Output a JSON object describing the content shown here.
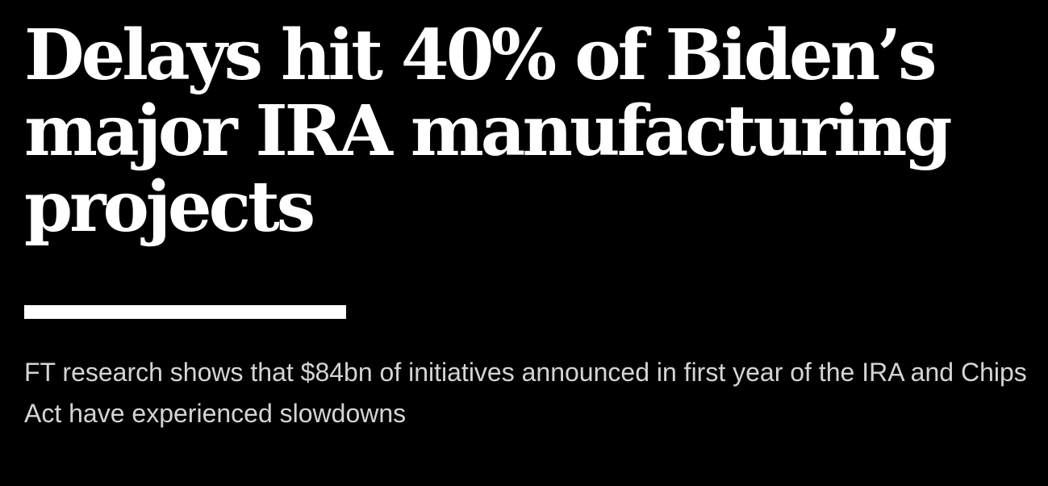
{
  "headline": "Delays hit 40% of Biden’s major IRA manufacturing projects",
  "standfirst": "FT research shows that $84bn of initiatives announced in first year of the IRA and Chips Act have experienced slowdowns"
}
